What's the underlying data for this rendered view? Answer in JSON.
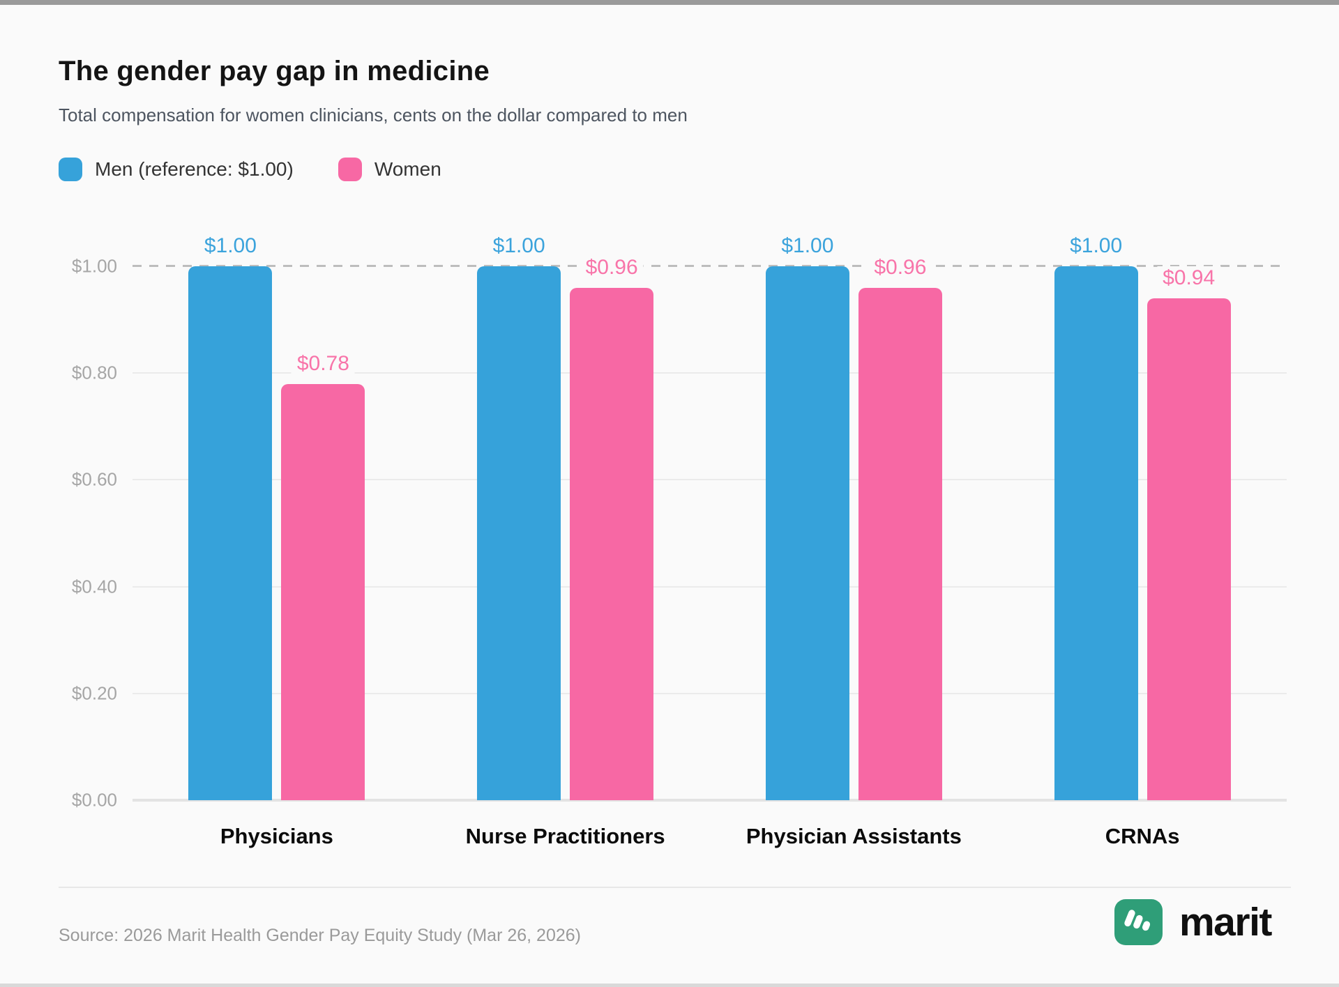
{
  "page": {
    "background_color": "#fafafa",
    "top_strip_color": "#9a9a9a",
    "bottom_strip_color": "#d9d9d9"
  },
  "header": {
    "title": "The gender pay gap in medicine",
    "subtitle": "Total compensation for women clinicians, cents on the dollar compared to men"
  },
  "legend": [
    {
      "key": "men",
      "label": "Men (reference: $1.00)",
      "color": "#36a2da"
    },
    {
      "key": "women",
      "label": "Women",
      "color": "#f768a4"
    }
  ],
  "chart_data": {
    "type": "bar",
    "categories": [
      "Physicians",
      "Nurse Practitioners",
      "Physician Assistants",
      "CRNAs"
    ],
    "series": [
      {
        "key": "men",
        "name": "Men (reference: $1.00)",
        "color": "#36a2da",
        "label_color": "#3ba3dc",
        "values": [
          1.0,
          1.0,
          1.0,
          1.0
        ],
        "labels": [
          "$1.00",
          "$1.00",
          "$1.00",
          "$1.00"
        ]
      },
      {
        "key": "women",
        "name": "Women",
        "color": "#f768a4",
        "label_color": "#f874a9",
        "values": [
          0.78,
          0.96,
          0.96,
          0.94
        ],
        "labels": [
          "$0.78",
          "$0.96",
          "$0.96",
          "$0.94"
        ]
      }
    ],
    "ylim": [
      0,
      1.0
    ],
    "yticks": [
      "$0.00",
      "$0.20",
      "$0.40",
      "$0.60",
      "$0.80",
      "$1.00"
    ],
    "reference_line": {
      "value": 1.0,
      "style": "dashed",
      "color": "#bdbdbd"
    },
    "grid": true,
    "legend_position": "top-left",
    "xlabel": "",
    "ylabel": ""
  },
  "footer": {
    "source": "Source: 2026 Marit Health Gender Pay Equity Study (Mar 26, 2026)",
    "brand": "marit",
    "brand_color": "#2f9e78"
  }
}
